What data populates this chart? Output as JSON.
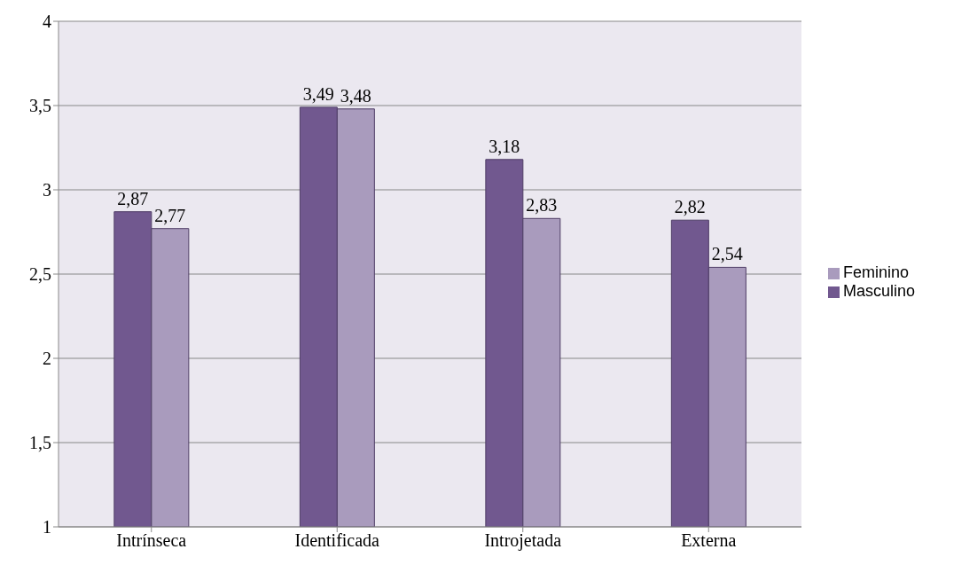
{
  "chart_data": {
    "type": "bar",
    "categories": [
      "Intrínseca",
      "Identificada",
      "Introjetada",
      "Externa"
    ],
    "series": [
      {
        "name": "Masculino",
        "color": "#71588f",
        "values": [
          2.87,
          3.49,
          3.18,
          2.82
        ],
        "value_labels": [
          "2,87",
          "3,49",
          "3,18",
          "2,82"
        ]
      },
      {
        "name": "Feminino",
        "color": "#a99bbd",
        "values": [
          2.77,
          3.48,
          2.83,
          2.54
        ],
        "value_labels": [
          "2,77",
          "3,48",
          "2,83",
          "2,54"
        ]
      }
    ],
    "ylim": [
      1,
      4
    ],
    "yticks": [
      1,
      {
        "value": 1.5,
        "label": "1,5"
      },
      2,
      {
        "value": 2.5,
        "label": "2,5"
      },
      3,
      {
        "value": 3.5,
        "label": "3,5"
      },
      4
    ],
    "grid": "y",
    "legend": "right"
  }
}
